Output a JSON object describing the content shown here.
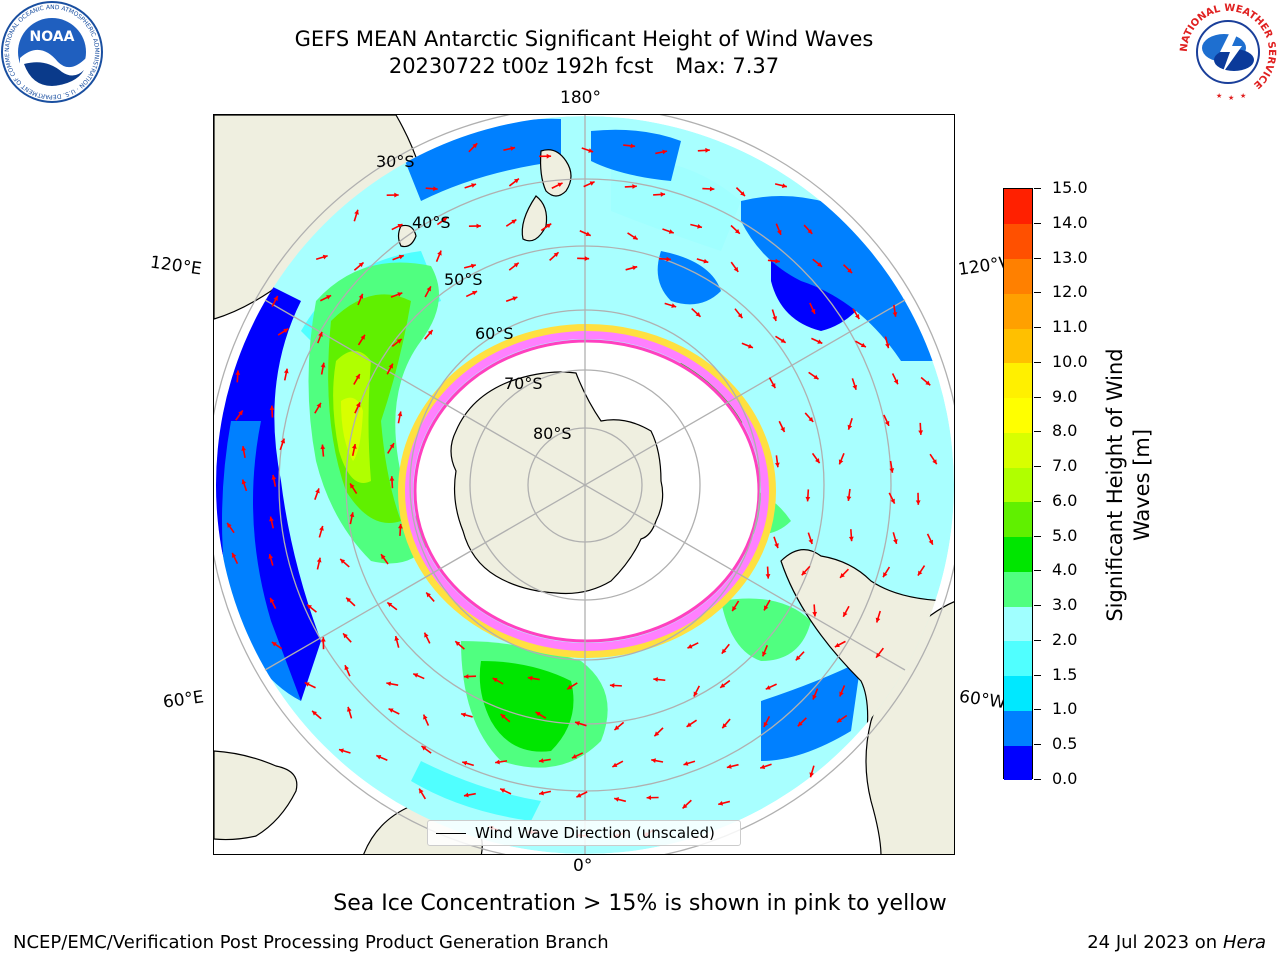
{
  "header": {
    "title_line1": "GEFS MEAN Antarctic Significant Height of Wind Waves",
    "title_line2_date": "20230722 t00z 192h fcst",
    "title_line2_max": "Max: 7.37"
  },
  "logos": {
    "left": {
      "name": "noaa-logo",
      "text": "NOAA",
      "ring_text": "NATIONAL OCEANIC AND ATMOSPHERIC ADMINISTRATION · U.S. DEPARTMENT OF COMMERCE"
    },
    "right": {
      "name": "nws-logo",
      "ring_text": "NATIONAL WEATHER SERVICE"
    }
  },
  "map": {
    "projection": "south-polar-stereographic",
    "longitude_labels": {
      "top": "180°",
      "bottom": "0°",
      "upper_left": "120°E",
      "upper_right": "120°W",
      "lower_left": "60°E",
      "lower_right": "60°W"
    },
    "latitude_labels": [
      "30°S",
      "40°S",
      "50°S",
      "60°S",
      "70°S",
      "80°S"
    ],
    "legend_label": "Wind Wave Direction (unscaled)",
    "colors": {
      "land": "#efefe0",
      "coast": "#000000",
      "grid": "#b0b0b0",
      "arrow": "#ff0000"
    }
  },
  "colorbar": {
    "label_line1": "Significant Height of Wind",
    "label_line2": "Waves [m]",
    "levels": [
      "0.0",
      "0.5",
      "1.0",
      "1.5",
      "2.0",
      "3.0",
      "4.0",
      "5.0",
      "6.0",
      "7.0",
      "8.0",
      "9.0",
      "10.0",
      "11.0",
      "12.0",
      "13.0",
      "14.0",
      "15.0"
    ],
    "colors": [
      "#0000ff",
      "#0080ff",
      "#00e8ff",
      "#50ffff",
      "#a0ffff",
      "#50ff80",
      "#00e600",
      "#60f000",
      "#b0ff00",
      "#d8ff00",
      "#ffff00",
      "#fff000",
      "#ffc000",
      "#ffa000",
      "#ff8000",
      "#ff5000",
      "#ff2000"
    ]
  },
  "annotations": {
    "sea_ice_note": "Sea Ice Concentration > 15% is shown in pink to yellow"
  },
  "footer": {
    "left": "NCEP/EMC/Verification Post Processing Product Generation Branch",
    "right_date": "24 Jul 2023 on",
    "right_host": "Hera"
  }
}
